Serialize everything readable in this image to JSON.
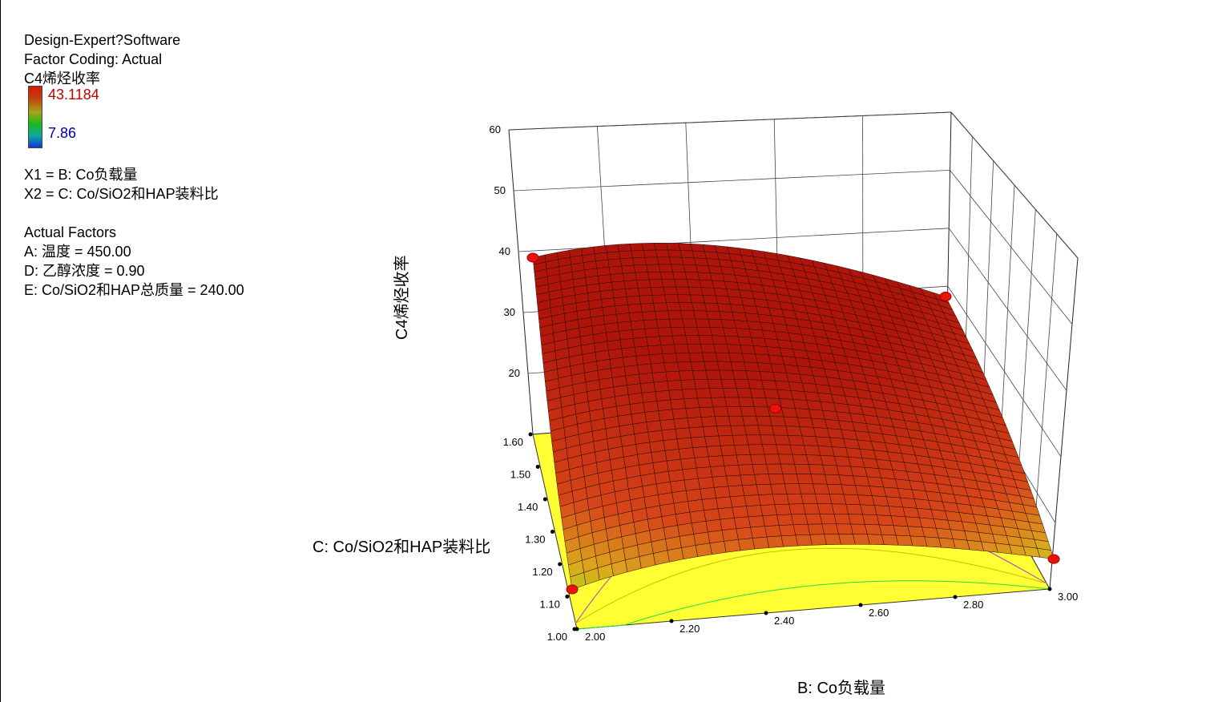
{
  "header": {
    "software": "Design-Expert?Software",
    "coding": "Factor Coding: Actual",
    "response": "C4烯烃收率"
  },
  "legend": {
    "high": "43.1184",
    "low": "7.86",
    "high_color": "#c00000",
    "low_color": "#0000a8"
  },
  "factors": {
    "x1": "X1 = B: Co负载量",
    "x2": "X2 = C: Co/SiO2和HAP装料比"
  },
  "actual_factors": {
    "title": "Actual Factors",
    "a": "A: 温度 = 450.00",
    "d": "D: 乙醇浓度 = 0.90",
    "e": "E: Co/SiO2和HAP总质量 = 240.00"
  },
  "chart_data": {
    "type": "surface3d",
    "xlabel": "B: Co负载量",
    "ylabel": "C: Co/SiO2和HAP装料比",
    "zlabel": "C4烯烃收率",
    "x_ticks": [
      "2.00",
      "2.20",
      "2.40",
      "2.60",
      "2.80",
      "3.00"
    ],
    "y_ticks": [
      "1.00",
      "1.10",
      "1.20",
      "1.30",
      "1.40",
      "1.50",
      "1.60"
    ],
    "z_ticks": [
      "20",
      "30",
      "40",
      "50",
      "60"
    ],
    "xlim": [
      2.0,
      3.0
    ],
    "ylim": [
      1.0,
      1.6
    ],
    "zlim": [
      10,
      60
    ],
    "color_range": [
      7.86,
      43.1184
    ],
    "surface_corners": {
      "x2.0_y1.0": 17.5,
      "x3.0_y1.0": 18.5,
      "x2.0_y1.6": 41.5,
      "x3.0_y1.6": 37.5
    },
    "design_points": [
      {
        "x": 2.0,
        "y": 1.6,
        "z": 41.5
      },
      {
        "x": 3.0,
        "y": 1.6,
        "z": 37.5
      },
      {
        "x": 2.5,
        "y": 1.3,
        "z": 33
      },
      {
        "x": 2.0,
        "y": 1.0,
        "z": 17.5
      },
      {
        "x": 3.0,
        "y": 1.0,
        "z": 18.5
      }
    ],
    "contour_levels": [
      10,
      15,
      20
    ],
    "contour_floor_color": "#ffff33"
  }
}
